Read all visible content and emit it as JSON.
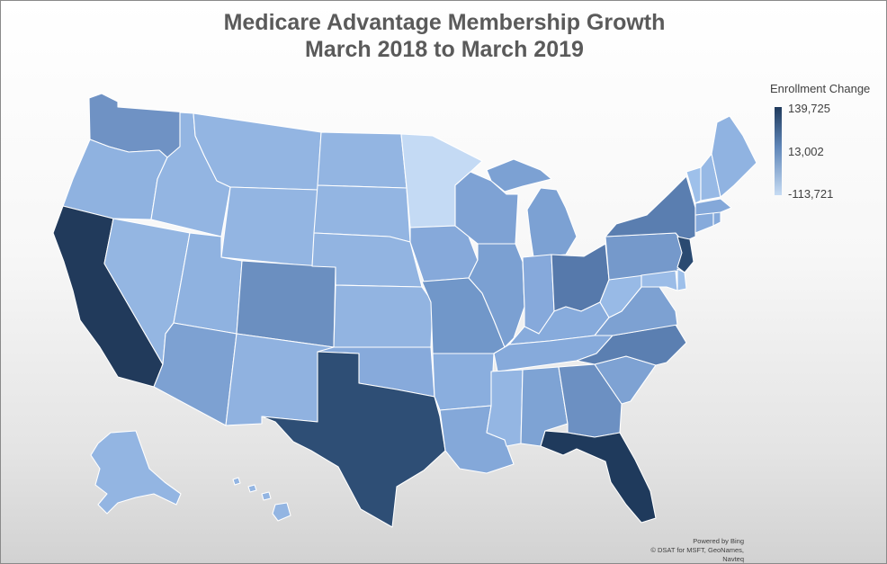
{
  "title": {
    "line1": "Medicare Advantage Membership Growth",
    "line2": "March 2018 to March 2019"
  },
  "legend": {
    "title": "Enrollment Change",
    "max_label": "139,725",
    "mid_label": "13,002",
    "min_label": "-113,721",
    "max_value": 139725,
    "mid_value": 13002,
    "min_value": -113721,
    "color_high": "#1f3a5c",
    "color_mid": "#5f86b8",
    "color_low": "#c6dbf3"
  },
  "credits": {
    "powered_by": "Powered by Bing",
    "attribution": "© DSAT for MSFT, GeoNames, Navteq"
  },
  "state_shading": {
    "WA": "#6f92c4",
    "OR": "#8fb2e0",
    "CA": "#213a5b",
    "NV": "#94b6e2",
    "ID": "#93b5e2",
    "MT": "#93b5e2",
    "WY": "#93b5e2",
    "UT": "#8fb2e0",
    "AZ": "#7da1d2",
    "CO": "#6b8fc0",
    "NM": "#90b2e0",
    "ND": "#93b5e2",
    "SD": "#93b5e2",
    "NE": "#92b4e1",
    "KS": "#92b4e1",
    "OK": "#87aadb",
    "TX": "#2e4e75",
    "MN": "#c4daf4",
    "IA": "#86a9da",
    "MO": "#7197c9",
    "AR": "#8aaede",
    "LA": "#84a8d9",
    "WI": "#7ea2d4",
    "IL": "#7ba0d2",
    "MI": "#7ca1d3",
    "IN": "#86a9db",
    "OH": "#5679ab",
    "KY": "#87abdc",
    "TN": "#86aadb",
    "MS": "#94b6e3",
    "AL": "#7ea3d4",
    "GA": "#6c90c2",
    "FL": "#1f3a5c",
    "SC": "#7ea2d3",
    "NC": "#5b7fb1",
    "VA": "#7da1d2",
    "WV": "#98bae6",
    "PA": "#7599cb",
    "NY": "#5a7eb0",
    "NJ": "#2a4a71",
    "MD": "#9bbce7",
    "DE": "#9ec0ea",
    "CT": "#86aadb",
    "RI": "#86aadb",
    "MA": "#84a8d9",
    "VT": "#9ec0ea",
    "NH": "#97b9e5",
    "ME": "#90b3e1",
    "AK": "#93b5e2",
    "HI": "#93b5e2"
  }
}
